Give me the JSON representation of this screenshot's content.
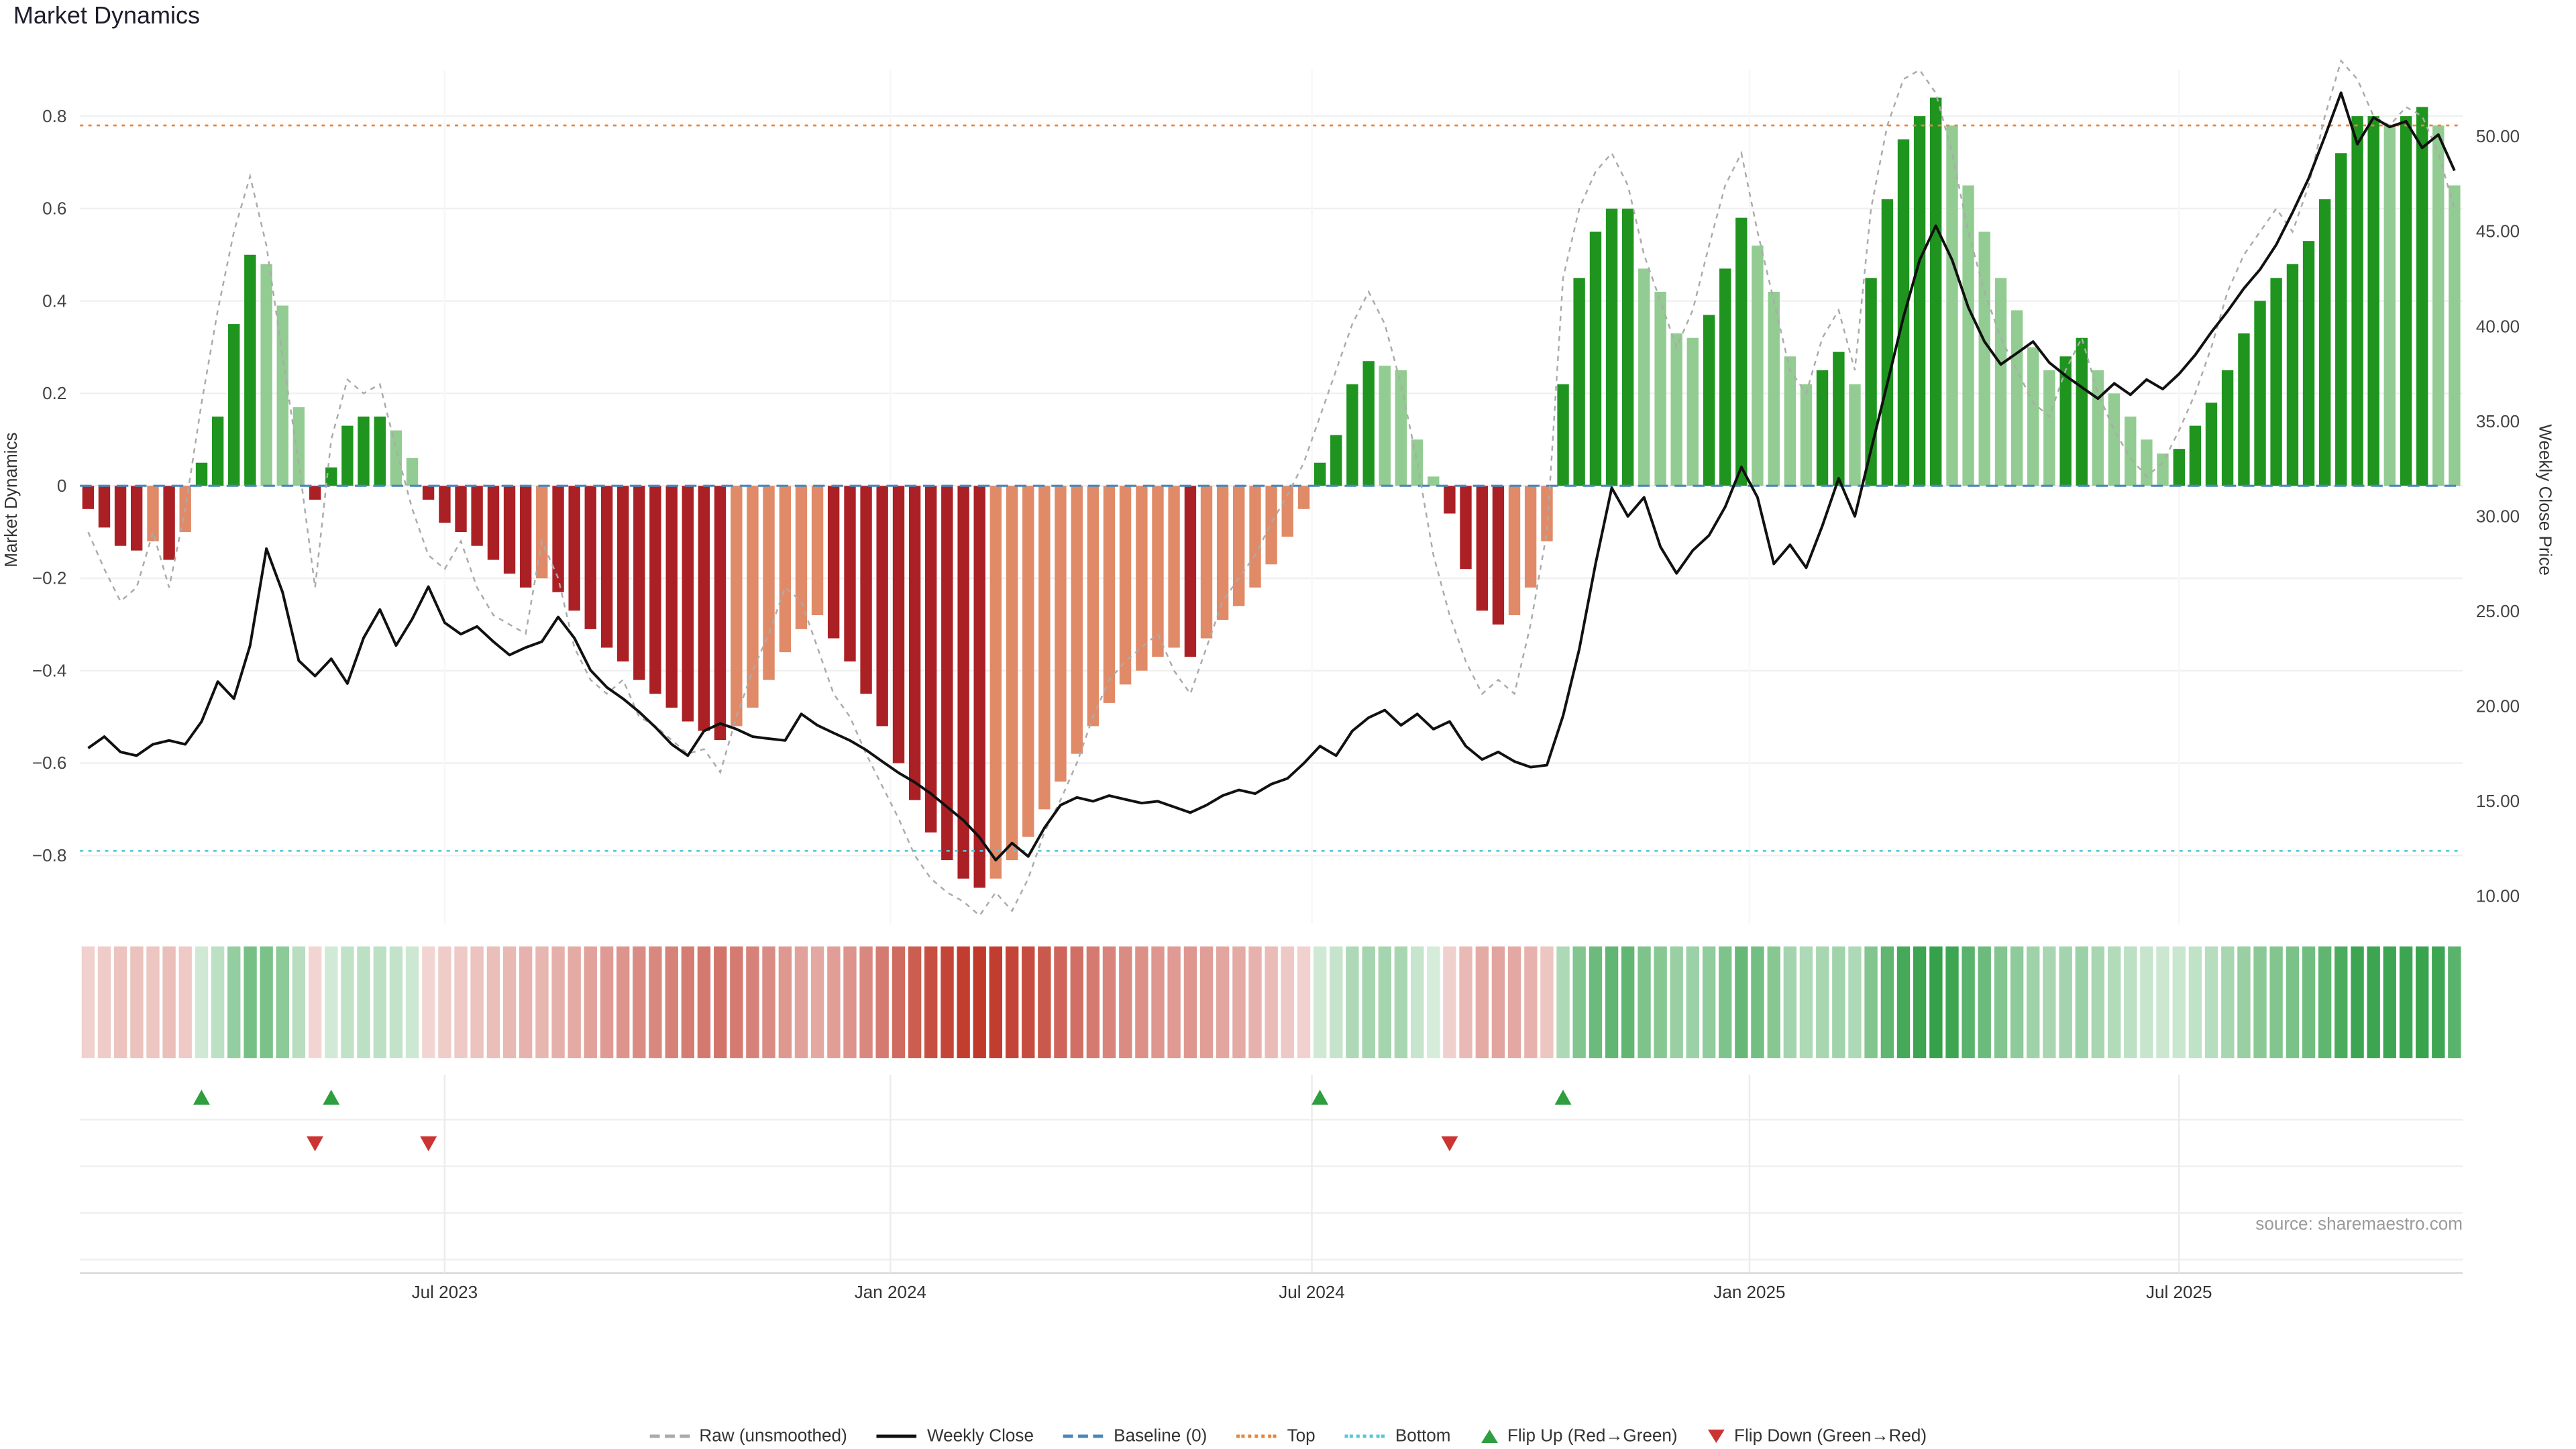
{
  "page_title": "Market Dynamics",
  "axes": {
    "left_label": "Market Dynamics",
    "right_label": "Weekly Close Price"
  },
  "source_text": "source: sharemaestro.com",
  "legend": {
    "raw": "Raw (unsmoothed)",
    "close": "Weekly Close",
    "baseline": "Baseline (0)",
    "top": "Top",
    "bottom": "Bottom",
    "flip_up": "Flip Up (Red→Green)",
    "flip_down": "Flip Down (Green→Red)"
  },
  "chart_data": {
    "type": "bar",
    "title": "Market Dynamics",
    "xlabel": "",
    "ylabel_left": "Market Dynamics",
    "ylabel_right": "Weekly Close Price",
    "ylim_left": [
      -0.95,
      0.9
    ],
    "ylim_right": [
      8.5,
      53.5
    ],
    "yticks_left": [
      0.8,
      0.6,
      0.4,
      0.2,
      0,
      -0.2,
      -0.4,
      -0.6,
      -0.8
    ],
    "yticks_right": [
      50,
      45,
      40,
      35,
      30,
      25,
      20,
      15,
      10
    ],
    "baseline": 0,
    "top_level": 0.78,
    "bottom_level": -0.79,
    "grid": true,
    "legend_position": "bottom-center",
    "xticks": [
      {
        "label": "Jul 2023",
        "i": 22
      },
      {
        "label": "Jan 2024",
        "i": 49.5
      },
      {
        "label": "Jul 2024",
        "i": 75.5
      },
      {
        "label": "Jan 2025",
        "i": 102.5
      },
      {
        "label": "Jul 2025",
        "i": 129
      }
    ],
    "series": {
      "dynamics": [
        -0.05,
        -0.09,
        -0.13,
        -0.14,
        -0.12,
        -0.16,
        -0.1,
        0.05,
        0.15,
        0.35,
        0.5,
        0.48,
        0.39,
        0.17,
        -0.03,
        0.04,
        0.13,
        0.15,
        0.15,
        0.12,
        0.06,
        -0.03,
        -0.08,
        -0.1,
        -0.13,
        -0.16,
        -0.19,
        -0.22,
        -0.2,
        -0.23,
        -0.27,
        -0.31,
        -0.35,
        -0.38,
        -0.42,
        -0.45,
        -0.48,
        -0.51,
        -0.53,
        -0.55,
        -0.52,
        -0.48,
        -0.42,
        -0.36,
        -0.31,
        -0.28,
        -0.33,
        -0.38,
        -0.45,
        -0.52,
        -0.6,
        -0.68,
        -0.75,
        -0.81,
        -0.85,
        -0.87,
        -0.85,
        -0.81,
        -0.76,
        -0.7,
        -0.64,
        -0.58,
        -0.52,
        -0.47,
        -0.43,
        -0.4,
        -0.37,
        -0.35,
        -0.37,
        -0.33,
        -0.29,
        -0.26,
        -0.22,
        -0.17,
        -0.11,
        -0.05,
        0.05,
        0.11,
        0.22,
        0.27,
        0.26,
        0.25,
        0.1,
        0.02,
        -0.06,
        -0.18,
        -0.27,
        -0.3,
        -0.28,
        -0.22,
        -0.12,
        0.22,
        0.45,
        0.55,
        0.6,
        0.6,
        0.47,
        0.42,
        0.33,
        0.32,
        0.37,
        0.47,
        0.58,
        0.52,
        0.42,
        0.28,
        0.22,
        0.25,
        0.29,
        0.22,
        0.45,
        0.62,
        0.75,
        0.8,
        0.84,
        0.78,
        0.65,
        0.55,
        0.45,
        0.38,
        0.3,
        0.25,
        0.28,
        0.32,
        0.25,
        0.2,
        0.15,
        0.1,
        0.07,
        0.08,
        0.13,
        0.18,
        0.25,
        0.33,
        0.4,
        0.45,
        0.48,
        0.53,
        0.62,
        0.72,
        0.8,
        0.8,
        0.78,
        0.8,
        0.82,
        0.78,
        0.65
      ],
      "raw": [
        -0.1,
        -0.18,
        -0.25,
        -0.22,
        -0.1,
        -0.22,
        -0.05,
        0.18,
        0.38,
        0.55,
        0.67,
        0.52,
        0.28,
        0.05,
        -0.22,
        0.1,
        0.23,
        0.2,
        0.22,
        0.08,
        -0.05,
        -0.15,
        -0.18,
        -0.12,
        -0.22,
        -0.28,
        -0.3,
        -0.32,
        -0.12,
        -0.2,
        -0.35,
        -0.42,
        -0.45,
        -0.42,
        -0.5,
        -0.52,
        -0.55,
        -0.58,
        -0.57,
        -0.62,
        -0.5,
        -0.4,
        -0.32,
        -0.22,
        -0.25,
        -0.35,
        -0.45,
        -0.5,
        -0.58,
        -0.65,
        -0.72,
        -0.8,
        -0.85,
        -0.88,
        -0.9,
        -0.93,
        -0.88,
        -0.92,
        -0.85,
        -0.75,
        -0.68,
        -0.6,
        -0.5,
        -0.42,
        -0.38,
        -0.35,
        -0.32,
        -0.4,
        -0.45,
        -0.35,
        -0.25,
        -0.2,
        -0.15,
        -0.08,
        -0.02,
        0.05,
        0.15,
        0.25,
        0.35,
        0.42,
        0.35,
        0.22,
        0.05,
        -0.15,
        -0.28,
        -0.38,
        -0.45,
        -0.42,
        -0.45,
        -0.3,
        -0.1,
        0.45,
        0.6,
        0.68,
        0.72,
        0.65,
        0.5,
        0.4,
        0.3,
        0.38,
        0.52,
        0.65,
        0.72,
        0.55,
        0.4,
        0.25,
        0.2,
        0.32,
        0.38,
        0.25,
        0.6,
        0.78,
        0.88,
        0.9,
        0.85,
        0.72,
        0.55,
        0.42,
        0.32,
        0.25,
        0.18,
        0.15,
        0.25,
        0.32,
        0.2,
        0.12,
        0.06,
        0.02,
        0.05,
        0.12,
        0.2,
        0.3,
        0.42,
        0.5,
        0.55,
        0.6,
        0.55,
        0.65,
        0.8,
        0.92,
        0.88,
        0.8,
        0.78,
        0.82,
        0.8,
        0.72,
        0.6
      ],
      "close": [
        17.8,
        18.4,
        17.6,
        17.4,
        18.0,
        18.2,
        18.0,
        19.2,
        21.3,
        20.4,
        23.2,
        28.3,
        26.0,
        22.4,
        21.6,
        22.5,
        21.2,
        23.6,
        25.1,
        23.2,
        24.6,
        26.3,
        24.4,
        23.8,
        24.2,
        23.4,
        22.7,
        23.1,
        23.4,
        24.7,
        23.6,
        21.9,
        21.0,
        20.4,
        19.7,
        18.9,
        18.0,
        17.4,
        18.7,
        19.1,
        18.8,
        18.4,
        18.3,
        18.2,
        19.6,
        19.0,
        18.6,
        18.2,
        17.7,
        17.1,
        16.5,
        16.0,
        15.4,
        14.7,
        14.0,
        13.1,
        11.9,
        12.8,
        12.1,
        13.6,
        14.8,
        15.2,
        15.0,
        15.3,
        15.1,
        14.9,
        15.0,
        14.7,
        14.4,
        14.8,
        15.3,
        15.6,
        15.4,
        15.9,
        16.2,
        17.0,
        17.9,
        17.4,
        18.7,
        19.4,
        19.8,
        19.0,
        19.6,
        18.8,
        19.2,
        17.9,
        17.2,
        17.6,
        17.1,
        16.8,
        16.9,
        19.5,
        23.0,
        27.5,
        31.5,
        30.0,
        31.0,
        28.4,
        27.0,
        28.2,
        29.0,
        30.5,
        32.6,
        31.0,
        27.5,
        28.5,
        27.3,
        29.5,
        32.0,
        30.0,
        33.5,
        37.0,
        40.5,
        43.5,
        45.3,
        43.5,
        41.0,
        39.2,
        38.0,
        38.6,
        39.2,
        38.1,
        37.4,
        36.8,
        36.2,
        37.0,
        36.4,
        37.2,
        36.7,
        37.5,
        38.5,
        39.7,
        40.8,
        42.0,
        43.0,
        44.3,
        46.0,
        47.8,
        50.0,
        52.3,
        49.6,
        51.0,
        50.5,
        50.8,
        49.4,
        50.1,
        48.2
      ]
    },
    "flip_up_indices": [
      7,
      15,
      76,
      91
    ],
    "flip_down_indices": [
      14,
      21,
      84
    ],
    "colors": {
      "dark_green": "#1f941f",
      "light_green": "#92cc92",
      "dark_red": "#ab2024",
      "light_red": "#e08a68",
      "heat_green": "#2e9e44",
      "heat_red": "#c0392b",
      "raw_line": "#ababab",
      "close_line": "#111111",
      "baseline": "#4c87b9",
      "top_line": "#e8853d",
      "bottom_line": "#56c8d8",
      "flip_up": "#2e9e3e",
      "flip_down": "#cc3333",
      "gridline": "#f0f0f0"
    }
  }
}
